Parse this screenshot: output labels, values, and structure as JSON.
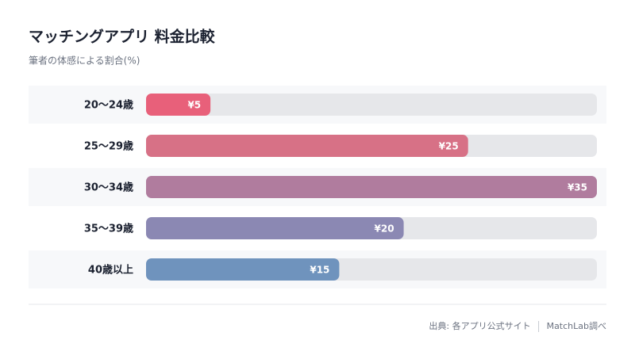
{
  "chart_data": {
    "type": "bar",
    "orientation": "horizontal",
    "title": "マッチングアプリ 料金比較",
    "subtitle": "筆者の体感による割合(%)",
    "categories": [
      "20〜24歳",
      "25〜29歳",
      "30〜34歳",
      "35〜39歳",
      "40歳以上"
    ],
    "values": [
      5,
      25,
      35,
      20,
      15
    ],
    "value_labels": [
      "¥5",
      "¥25",
      "¥35",
      "¥20",
      "¥15"
    ],
    "colors": [
      "#e8607a",
      "#d77186",
      "#b07c9e",
      "#8b88b3",
      "#6f93bd"
    ],
    "source": "出典: 各アプリ公式サイト",
    "credit": "MatchLab調べ"
  }
}
